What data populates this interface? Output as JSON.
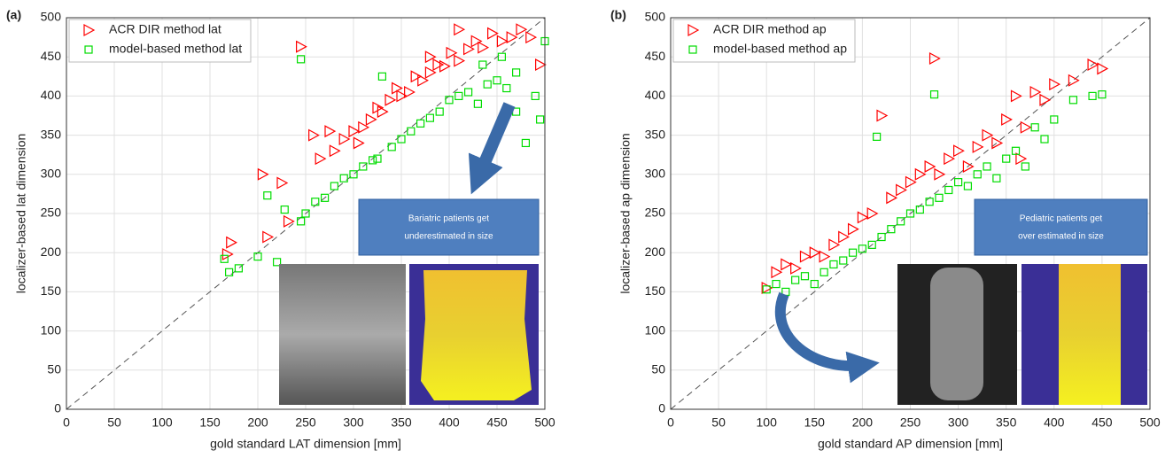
{
  "chart_data": [
    {
      "type": "scatter",
      "panel_label": "(a)",
      "xlabel": "gold standard LAT dimension [mm]",
      "ylabel": "localizer-based lat dimension",
      "xlim": [
        0,
        500
      ],
      "ylim": [
        0,
        500
      ],
      "xticks": [
        0,
        50,
        100,
        150,
        200,
        250,
        300,
        350,
        400,
        450,
        500
      ],
      "yticks": [
        0,
        50,
        100,
        150,
        200,
        250,
        300,
        350,
        400,
        450,
        500
      ],
      "grid": true,
      "legend": "upper left",
      "annotation": [
        "Bariatric  patients  get",
        "underestimated  in size"
      ],
      "series": [
        {
          "name": "ACR DIR method lat",
          "color": "#ff0000",
          "marker": "triangle",
          "x": [
            168,
            172,
            205,
            210,
            225,
            232,
            245,
            258,
            265,
            275,
            280,
            290,
            300,
            305,
            310,
            318,
            325,
            330,
            338,
            345,
            350,
            358,
            365,
            372,
            380,
            388,
            395,
            402,
            410,
            420,
            428,
            435,
            445,
            455,
            465,
            475,
            485,
            495,
            410,
            380
          ],
          "values": [
            198,
            213,
            300,
            220,
            289,
            240,
            463,
            350,
            320,
            355,
            330,
            345,
            355,
            340,
            360,
            370,
            385,
            380,
            395,
            410,
            400,
            405,
            425,
            420,
            430,
            440,
            438,
            455,
            445,
            460,
            470,
            462,
            480,
            470,
            475,
            485,
            475,
            440,
            485,
            450
          ]
        },
        {
          "name": "model-based method lat",
          "color": "#00dd00",
          "marker": "square",
          "x": [
            165,
            170,
            180,
            200,
            210,
            220,
            228,
            245,
            250,
            260,
            270,
            280,
            290,
            300,
            310,
            320,
            330,
            340,
            350,
            360,
            370,
            380,
            390,
            400,
            410,
            420,
            430,
            440,
            450,
            460,
            470,
            480,
            490,
            495,
            325,
            245,
            470,
            500,
            455,
            435
          ],
          "values": [
            192,
            175,
            180,
            195,
            273,
            188,
            255,
            447,
            250,
            265,
            270,
            285,
            295,
            300,
            310,
            318,
            425,
            335,
            345,
            355,
            365,
            372,
            380,
            395,
            400,
            405,
            390,
            415,
            420,
            410,
            430,
            340,
            400,
            370,
            320,
            240,
            380,
            470,
            450,
            440
          ]
        }
      ]
    },
    {
      "type": "scatter",
      "panel_label": "(b)",
      "xlabel": "gold standard AP dimension [mm]",
      "ylabel": "localizer-based ap dimension",
      "xlim": [
        0,
        500
      ],
      "ylim": [
        0,
        500
      ],
      "xticks": [
        0,
        50,
        100,
        150,
        200,
        250,
        300,
        350,
        400,
        450,
        500
      ],
      "yticks": [
        0,
        50,
        100,
        150,
        200,
        250,
        300,
        350,
        400,
        450,
        500
      ],
      "grid": true,
      "legend": "upper left",
      "annotation": [
        "Pediatric  patients  get",
        "over estimated  in size"
      ],
      "series": [
        {
          "name": "ACR DIR method ap",
          "color": "#ff0000",
          "marker": "triangle",
          "x": [
            100,
            110,
            120,
            130,
            140,
            150,
            160,
            170,
            180,
            190,
            200,
            210,
            220,
            230,
            240,
            250,
            260,
            270,
            275,
            280,
            290,
            300,
            310,
            320,
            330,
            340,
            350,
            360,
            370,
            380,
            390,
            400,
            420,
            440,
            450,
            365
          ],
          "values": [
            155,
            175,
            185,
            180,
            195,
            200,
            195,
            210,
            220,
            230,
            245,
            250,
            375,
            270,
            280,
            290,
            300,
            310,
            448,
            300,
            320,
            330,
            310,
            335,
            350,
            340,
            370,
            400,
            360,
            405,
            395,
            415,
            420,
            440,
            435,
            320
          ]
        },
        {
          "name": "model-based method ap",
          "color": "#00dd00",
          "marker": "square",
          "x": [
            100,
            110,
            120,
            130,
            140,
            150,
            160,
            170,
            180,
            190,
            200,
            210,
            220,
            230,
            240,
            250,
            260,
            270,
            275,
            280,
            290,
            300,
            310,
            320,
            330,
            340,
            350,
            360,
            370,
            380,
            390,
            400,
            420,
            440,
            450,
            215
          ],
          "values": [
            153,
            160,
            150,
            165,
            170,
            160,
            175,
            185,
            190,
            200,
            205,
            210,
            220,
            230,
            240,
            250,
            255,
            265,
            402,
            270,
            280,
            290,
            285,
            300,
            310,
            295,
            320,
            330,
            310,
            360,
            345,
            370,
            395,
            400,
            402,
            348
          ]
        }
      ]
    }
  ]
}
